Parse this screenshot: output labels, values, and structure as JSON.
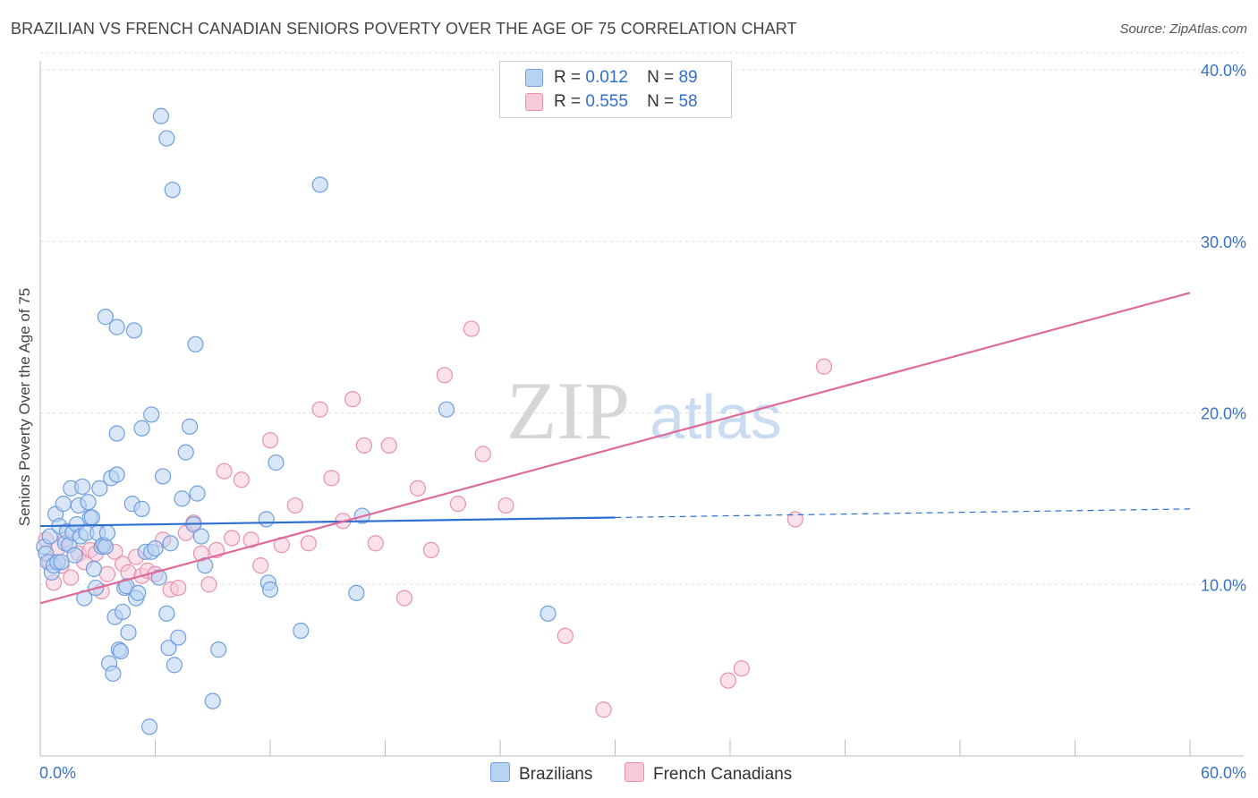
{
  "title": "BRAZILIAN VS FRENCH CANADIAN SENIORS POVERTY OVER THE AGE OF 75 CORRELATION CHART",
  "source": "Source: ZipAtlas.com",
  "watermark": {
    "zip": "ZIP",
    "atlas": "atlas"
  },
  "colors": {
    "blue_fill": "#b8d2f2",
    "blue_stroke": "#6f9fde",
    "blue_line": "#2f6fcf",
    "pink_fill": "#f8c9d8",
    "pink_stroke": "#e892ad",
    "pink_line": "#e06b98",
    "tick_text": "#3a72c8",
    "grid": "#dddddd"
  },
  "legend": {
    "rows": [
      {
        "r_label": "R =",
        "r_value": "0.012",
        "n_label": "N =",
        "n_value": "89"
      },
      {
        "r_label": "R =",
        "r_value": "0.555",
        "n_label": "N =",
        "n_value": "58"
      }
    ]
  },
  "bottom_legend": {
    "brazilians": "Brazilians",
    "french_canadians": "French Canadians"
  },
  "chart_data": {
    "type": "scatter",
    "title": "BRAZILIAN VS FRENCH CANADIAN SENIORS POVERTY OVER THE AGE OF 75 CORRELATION CHART",
    "xlabel": "",
    "ylabel": "Seniors Poverty Over the Age of 75",
    "xlim": [
      0,
      60
    ],
    "ylim": [
      0,
      40
    ],
    "x_tick_labels": [
      "0.0%",
      "60.0%"
    ],
    "y_ticks": [
      10,
      20,
      30,
      40
    ],
    "y_tick_labels": [
      "10.0%",
      "20.0%",
      "30.0%",
      "40.0%"
    ],
    "grid": true,
    "legend_position": "top-center",
    "series": [
      {
        "name": "Brazilians",
        "r": 0.012,
        "n": 89,
        "trend": {
          "x": [
            0,
            30
          ],
          "y": [
            13.4,
            13.9
          ],
          "dashed_to": [
            60,
            14.4
          ]
        },
        "points": [
          [
            0.2,
            12.2
          ],
          [
            0.3,
            11.8
          ],
          [
            0.4,
            11.3
          ],
          [
            0.5,
            12.8
          ],
          [
            0.6,
            10.7
          ],
          [
            0.7,
            11.1
          ],
          [
            0.8,
            14.1
          ],
          [
            0.9,
            11.3
          ],
          [
            1.0,
            13.4
          ],
          [
            1.1,
            11.3
          ],
          [
            1.2,
            14.7
          ],
          [
            1.3,
            12.4
          ],
          [
            1.4,
            13.1
          ],
          [
            1.5,
            12.3
          ],
          [
            1.6,
            15.6
          ],
          [
            1.7,
            13.0
          ],
          [
            1.8,
            11.7
          ],
          [
            1.9,
            13.5
          ],
          [
            2.0,
            14.6
          ],
          [
            2.1,
            12.8
          ],
          [
            2.2,
            15.7
          ],
          [
            2.3,
            9.2
          ],
          [
            2.4,
            13.0
          ],
          [
            2.5,
            14.8
          ],
          [
            2.6,
            13.9
          ],
          [
            2.7,
            13.9
          ],
          [
            2.8,
            10.9
          ],
          [
            2.9,
            9.8
          ],
          [
            3.0,
            13.0
          ],
          [
            3.1,
            15.6
          ],
          [
            3.2,
            12.2
          ],
          [
            3.3,
            12.3
          ],
          [
            3.4,
            12.2
          ],
          [
            3.5,
            13.0
          ],
          [
            3.6,
            5.4
          ],
          [
            3.7,
            16.2
          ],
          [
            3.8,
            4.8
          ],
          [
            3.9,
            8.1
          ],
          [
            4.0,
            16.4
          ],
          [
            4.1,
            6.2
          ],
          [
            4.2,
            6.1
          ],
          [
            4.3,
            8.4
          ],
          [
            4.4,
            9.8
          ],
          [
            4.5,
            9.9
          ],
          [
            4.6,
            7.2
          ],
          [
            4.8,
            14.7
          ],
          [
            5.0,
            9.2
          ],
          [
            5.1,
            9.5
          ],
          [
            5.3,
            14.4
          ],
          [
            5.5,
            11.9
          ],
          [
            5.7,
            1.7
          ],
          [
            5.8,
            11.9
          ],
          [
            6.0,
            12.1
          ],
          [
            6.2,
            10.4
          ],
          [
            6.4,
            16.3
          ],
          [
            6.6,
            8.3
          ],
          [
            6.7,
            6.3
          ],
          [
            6.8,
            12.4
          ],
          [
            7.0,
            5.3
          ],
          [
            7.2,
            6.9
          ],
          [
            7.4,
            15.0
          ],
          [
            7.6,
            17.7
          ],
          [
            7.8,
            19.2
          ],
          [
            8.0,
            13.5
          ],
          [
            8.2,
            15.3
          ],
          [
            8.4,
            12.8
          ],
          [
            8.6,
            11.1
          ],
          [
            9.0,
            3.2
          ],
          [
            9.3,
            6.2
          ],
          [
            11.8,
            13.8
          ],
          [
            11.9,
            10.1
          ],
          [
            12.0,
            9.7
          ],
          [
            12.3,
            17.1
          ],
          [
            13.6,
            7.3
          ],
          [
            16.5,
            9.5
          ],
          [
            16.8,
            14.0
          ],
          [
            21.2,
            20.2
          ],
          [
            26.5,
            8.3
          ],
          [
            3.4,
            25.6
          ],
          [
            4.0,
            25.0
          ],
          [
            4.9,
            24.8
          ],
          [
            8.1,
            24.0
          ],
          [
            4.0,
            18.8
          ],
          [
            5.3,
            19.1
          ],
          [
            5.8,
            19.9
          ],
          [
            6.3,
            37.3
          ],
          [
            6.6,
            36.0
          ],
          [
            6.9,
            33.0
          ],
          [
            14.6,
            33.3
          ]
        ]
      },
      {
        "name": "French Canadians",
        "r": 0.555,
        "n": 58,
        "trend": {
          "x": [
            0,
            60
          ],
          "y": [
            8.9,
            27.0
          ]
        },
        "points": [
          [
            0.3,
            12.6
          ],
          [
            0.5,
            11.3
          ],
          [
            0.7,
            10.1
          ],
          [
            0.9,
            12.1
          ],
          [
            1.1,
            11.1
          ],
          [
            1.3,
            12.6
          ],
          [
            1.6,
            10.4
          ],
          [
            2.0,
            11.8
          ],
          [
            2.3,
            11.3
          ],
          [
            2.6,
            12.0
          ],
          [
            2.9,
            11.8
          ],
          [
            3.2,
            9.6
          ],
          [
            3.5,
            10.6
          ],
          [
            3.9,
            11.9
          ],
          [
            4.3,
            11.2
          ],
          [
            4.6,
            10.7
          ],
          [
            5.0,
            11.6
          ],
          [
            5.3,
            10.5
          ],
          [
            5.6,
            10.8
          ],
          [
            6.0,
            10.6
          ],
          [
            6.4,
            12.6
          ],
          [
            6.8,
            9.7
          ],
          [
            7.2,
            9.8
          ],
          [
            7.6,
            13.0
          ],
          [
            8.0,
            13.6
          ],
          [
            8.4,
            11.8
          ],
          [
            8.8,
            10.0
          ],
          [
            9.2,
            12.0
          ],
          [
            9.6,
            16.6
          ],
          [
            10.0,
            12.7
          ],
          [
            10.5,
            16.1
          ],
          [
            11.0,
            12.6
          ],
          [
            11.5,
            11.1
          ],
          [
            12.0,
            18.4
          ],
          [
            12.6,
            12.3
          ],
          [
            13.3,
            14.6
          ],
          [
            14.0,
            12.4
          ],
          [
            14.6,
            20.2
          ],
          [
            15.2,
            16.2
          ],
          [
            15.8,
            13.7
          ],
          [
            16.3,
            20.8
          ],
          [
            16.9,
            18.1
          ],
          [
            17.5,
            12.4
          ],
          [
            18.2,
            18.1
          ],
          [
            19.0,
            9.2
          ],
          [
            19.7,
            15.6
          ],
          [
            20.4,
            12.0
          ],
          [
            21.1,
            22.2
          ],
          [
            21.8,
            14.7
          ],
          [
            22.5,
            24.9
          ],
          [
            23.1,
            17.6
          ],
          [
            24.3,
            14.6
          ],
          [
            27.4,
            7.0
          ],
          [
            29.4,
            2.7
          ],
          [
            35.9,
            4.4
          ],
          [
            36.6,
            5.1
          ],
          [
            39.4,
            13.8
          ],
          [
            40.9,
            22.7
          ]
        ]
      }
    ]
  }
}
